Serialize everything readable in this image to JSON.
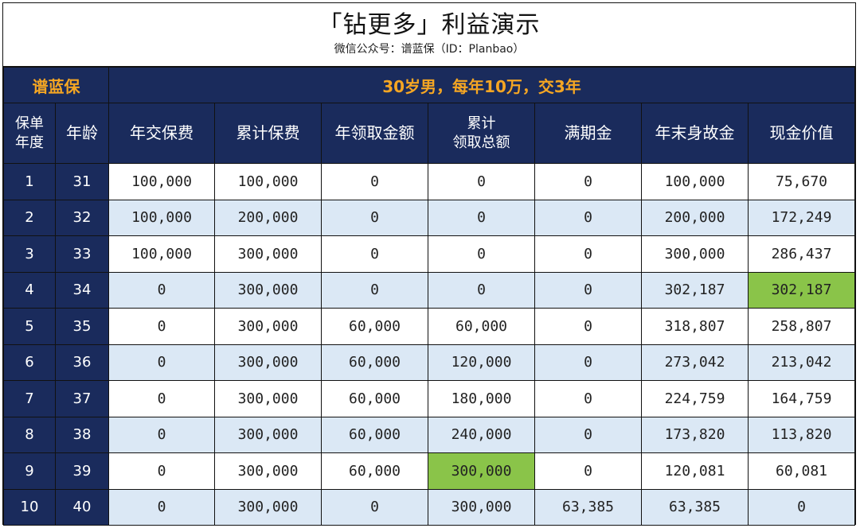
{
  "title": "「钻更多」利益演示",
  "subtitle": "微信公众号：谱蓝保（ID：Planbao）",
  "brand": "谱蓝保",
  "scenario": "30岁男，每年10万，交3年",
  "colors": {
    "navy": "#1a2b5c",
    "orange": "#f5a623",
    "light_blue": "#dbe8f5",
    "green": "#8ac449"
  },
  "columns": [
    {
      "label": "保单\n年度"
    },
    {
      "label": "年龄"
    },
    {
      "label": "年交保费"
    },
    {
      "label": "累计保费"
    },
    {
      "label": "年领取金额"
    },
    {
      "label": "累计\n领取总额"
    },
    {
      "label": "满期金"
    },
    {
      "label": "年末身故金"
    },
    {
      "label": "现金价值"
    }
  ],
  "rows": [
    [
      "1",
      "31",
      "100,000",
      "100,000",
      "0",
      "0",
      "0",
      "100,000",
      "75,670"
    ],
    [
      "2",
      "32",
      "100,000",
      "200,000",
      "0",
      "0",
      "0",
      "200,000",
      "172,249"
    ],
    [
      "3",
      "33",
      "100,000",
      "300,000",
      "0",
      "0",
      "0",
      "300,000",
      "286,437"
    ],
    [
      "4",
      "34",
      "0",
      "300,000",
      "0",
      "0",
      "0",
      "302,187",
      "302,187"
    ],
    [
      "5",
      "35",
      "0",
      "300,000",
      "60,000",
      "60,000",
      "0",
      "318,807",
      "258,807"
    ],
    [
      "6",
      "36",
      "0",
      "300,000",
      "60,000",
      "120,000",
      "0",
      "273,042",
      "213,042"
    ],
    [
      "7",
      "37",
      "0",
      "300,000",
      "60,000",
      "180,000",
      "0",
      "224,759",
      "164,759"
    ],
    [
      "8",
      "38",
      "0",
      "300,000",
      "60,000",
      "240,000",
      "0",
      "173,820",
      "113,820"
    ],
    [
      "9",
      "39",
      "0",
      "300,000",
      "60,000",
      "300,000",
      "0",
      "120,081",
      "60,081"
    ],
    [
      "10",
      "40",
      "0",
      "300,000",
      "0",
      "300,000",
      "63,385",
      "63,385",
      "0"
    ]
  ],
  "highlights": [
    {
      "row": 3,
      "col": 8
    },
    {
      "row": 8,
      "col": 5
    }
  ]
}
